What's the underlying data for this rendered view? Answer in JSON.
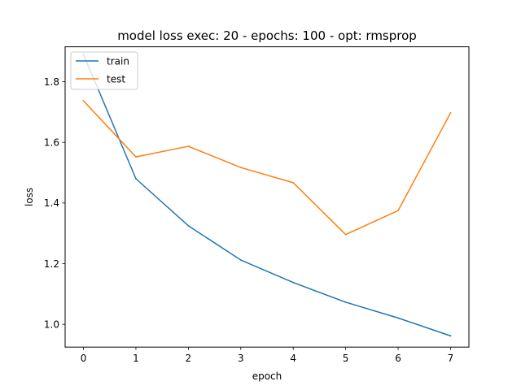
{
  "chart_data": {
    "type": "line",
    "title": "model loss exec: 20 - epochs: 100 - opt: rmsprop",
    "xlabel": "epoch",
    "ylabel": "loss",
    "x": [
      0,
      1,
      2,
      3,
      4,
      5,
      6,
      7
    ],
    "xlim": [
      -0.35,
      7.35
    ],
    "ylim": [
      0.925,
      1.915
    ],
    "xticks": [
      0,
      1,
      2,
      3,
      4,
      5,
      6,
      7
    ],
    "yticks": [
      1.0,
      1.2,
      1.4,
      1.6,
      1.8
    ],
    "grid": false,
    "legend_position": "top-left",
    "series": [
      {
        "name": "train",
        "color": "#1f77b4",
        "values": [
          1.89,
          1.48,
          1.325,
          1.212,
          1.138,
          1.073,
          1.021,
          0.962
        ]
      },
      {
        "name": "test",
        "color": "#ff7f0e",
        "values": [
          1.737,
          1.552,
          1.587,
          1.517,
          1.467,
          1.296,
          1.375,
          1.697
        ]
      }
    ]
  }
}
